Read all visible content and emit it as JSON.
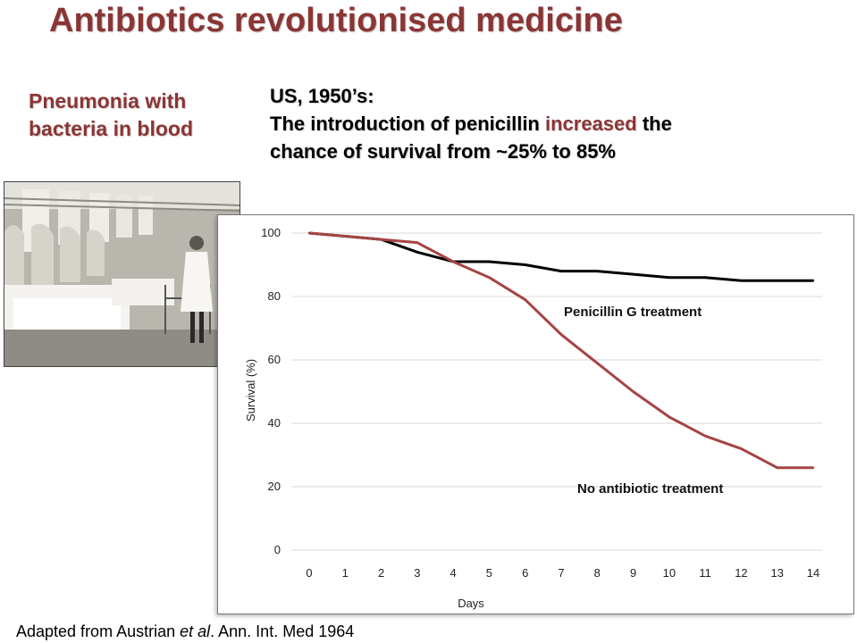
{
  "slide": {
    "title": "Antibiotics revolutionised medicine",
    "left_caption": [
      "Pneumonia with",
      "bacteria in blood"
    ],
    "headline": {
      "line1": "US, 1950’s:",
      "line2_before": "The introduction of penicillin ",
      "line2_highlight": "increased",
      "line2_after": " the",
      "line3": "chance of  survival from ~25% to 85%"
    },
    "footer": {
      "before": "Adapted from Austrian ",
      "italic": "et al",
      "after": ". Ann. Int. Med 1964"
    },
    "colors": {
      "title": "#8b3535",
      "highlight": "#8b3535",
      "no_antibiotic_line": "#a64444",
      "penicillin_line": "#000000",
      "grid": "#d9d9d9"
    }
  },
  "chart_data": {
    "type": "line",
    "x": [
      0,
      1,
      2,
      3,
      4,
      5,
      6,
      7,
      8,
      9,
      10,
      11,
      12,
      13,
      14
    ],
    "xlabel": "Days",
    "ylabel": "Survival (%)",
    "xlim": [
      0,
      14
    ],
    "ylim": [
      0,
      100
    ],
    "y_ticks": [
      0,
      20,
      40,
      60,
      80,
      100
    ],
    "x_ticks": [
      0,
      1,
      2,
      3,
      4,
      5,
      6,
      7,
      8,
      9,
      10,
      11,
      12,
      13,
      14
    ],
    "grid": "horizontal",
    "series": [
      {
        "name": "Penicillin G treatment",
        "color": "#000000",
        "values": [
          100,
          99,
          98,
          94,
          91,
          91,
          90,
          88,
          88,
          87,
          86,
          86,
          85,
          85,
          85
        ]
      },
      {
        "name": "No antibiotic treatment",
        "color": "#a64444",
        "values": [
          100,
          99,
          98,
          97,
          91,
          86,
          79,
          68,
          59,
          50,
          42,
          36,
          32,
          26,
          26
        ]
      }
    ]
  }
}
